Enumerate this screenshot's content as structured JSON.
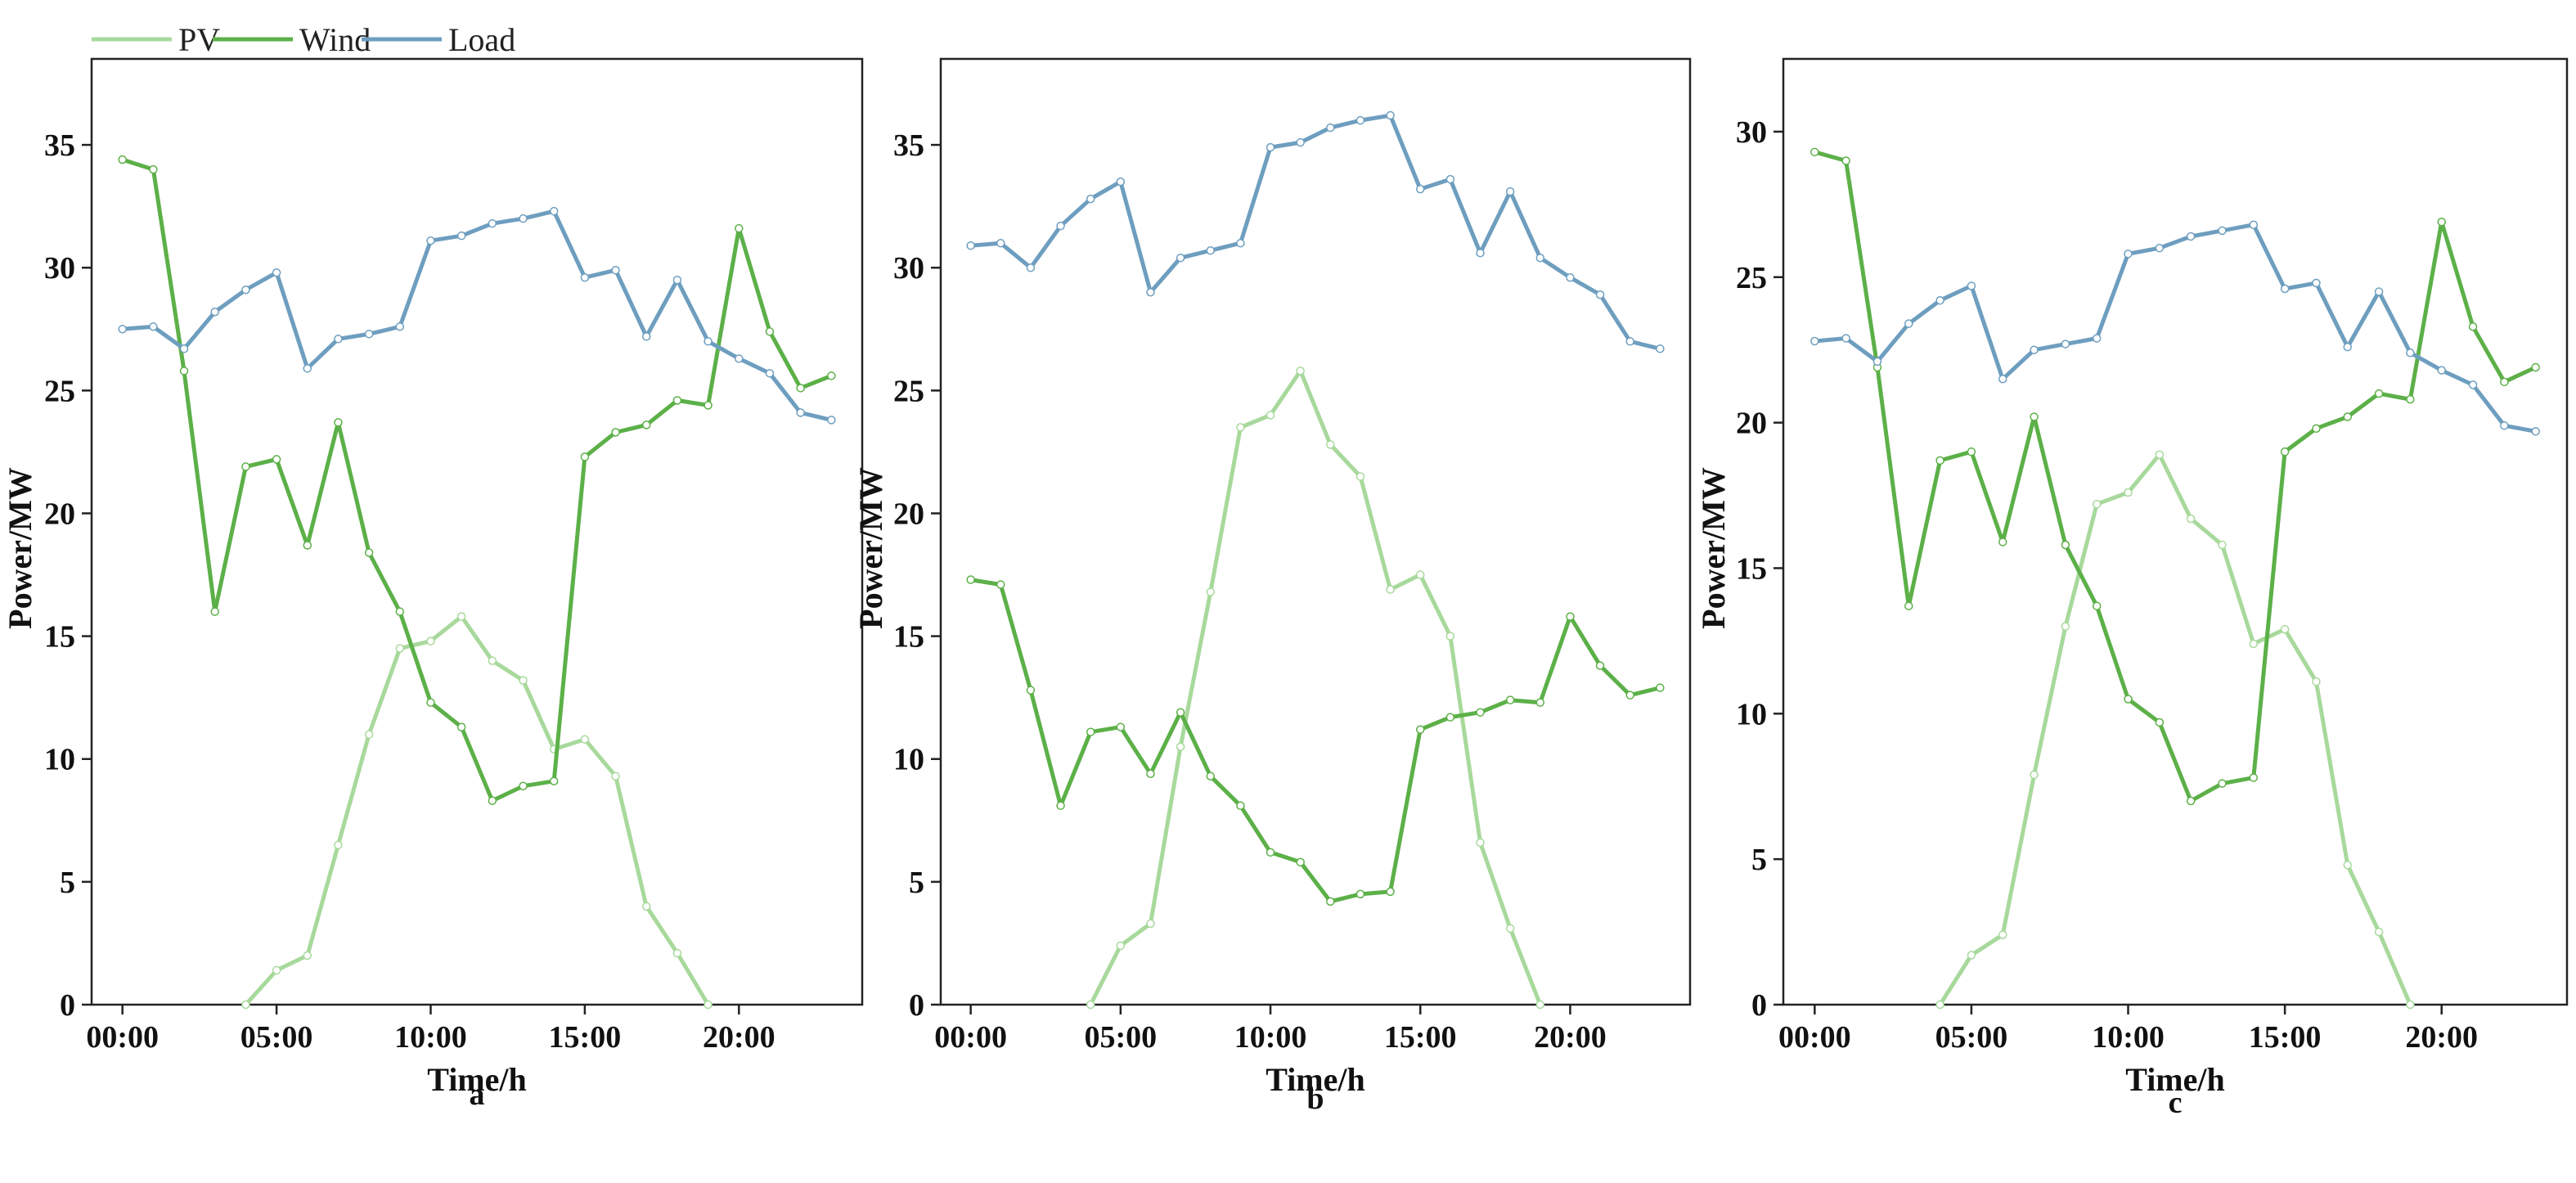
{
  "legend": {
    "items": [
      {
        "label": "PV",
        "color": "#a8d99c"
      },
      {
        "label": "Wind",
        "color": "#5cb048"
      },
      {
        "label": "Load",
        "color": "#6e9ebf"
      }
    ]
  },
  "chart_data": [
    {
      "type": "line",
      "panel_label": "a",
      "xlabel": "Time/h",
      "ylabel": "Power/MW",
      "x": [
        0,
        1,
        2,
        3,
        4,
        5,
        6,
        7,
        8,
        9,
        10,
        11,
        12,
        13,
        14,
        15,
        16,
        17,
        18,
        19,
        20,
        21,
        22,
        23
      ],
      "x_tick_labels": [
        "00:00",
        "05:00",
        "10:00",
        "15:00",
        "20:00"
      ],
      "x_tick_values": [
        0,
        5,
        10,
        15,
        20
      ],
      "xlim": [
        -1,
        24
      ],
      "ylim": [
        0,
        38.5
      ],
      "y_ticks": [
        0,
        5,
        10,
        15,
        20,
        25,
        30,
        35
      ],
      "series": [
        {
          "name": "PV",
          "color": "#a8d99c",
          "values": [
            null,
            null,
            null,
            null,
            0,
            1.4,
            2.0,
            6.5,
            11.0,
            14.5,
            14.8,
            15.8,
            14.0,
            13.2,
            10.4,
            10.8,
            9.3,
            4.0,
            2.1,
            0,
            null,
            null,
            null,
            null
          ]
        },
        {
          "name": "Wind",
          "color": "#5cb048",
          "values": [
            34.4,
            34.0,
            25.8,
            16.0,
            21.9,
            22.2,
            18.7,
            23.7,
            18.4,
            16.0,
            12.3,
            11.3,
            8.3,
            8.9,
            9.1,
            22.3,
            23.3,
            23.6,
            24.6,
            24.4,
            31.6,
            27.4,
            25.1,
            25.6
          ]
        },
        {
          "name": "Load",
          "color": "#6e9ebf",
          "values": [
            27.5,
            27.6,
            26.7,
            28.2,
            29.1,
            29.8,
            25.9,
            27.1,
            27.3,
            27.6,
            31.1,
            31.3,
            31.8,
            32.0,
            32.3,
            29.6,
            29.9,
            27.2,
            29.5,
            27.0,
            26.3,
            25.7,
            24.1,
            23.8
          ]
        }
      ]
    },
    {
      "type": "line",
      "panel_label": "b",
      "xlabel": "Time/h",
      "ylabel": "Power/MW",
      "x": [
        0,
        1,
        2,
        3,
        4,
        5,
        6,
        7,
        8,
        9,
        10,
        11,
        12,
        13,
        14,
        15,
        16,
        17,
        18,
        19,
        20,
        21,
        22,
        23
      ],
      "x_tick_labels": [
        "00:00",
        "05:00",
        "10:00",
        "15:00",
        "20:00"
      ],
      "x_tick_values": [
        0,
        5,
        10,
        15,
        20
      ],
      "xlim": [
        -1,
        24
      ],
      "ylim": [
        0,
        38.5
      ],
      "y_ticks": [
        0,
        5,
        10,
        15,
        20,
        25,
        30,
        35
      ],
      "series": [
        {
          "name": "PV",
          "color": "#a8d99c",
          "values": [
            null,
            null,
            null,
            null,
            0,
            2.4,
            3.3,
            10.5,
            16.8,
            23.5,
            24.0,
            25.8,
            22.8,
            21.5,
            16.9,
            17.5,
            15.0,
            6.6,
            3.1,
            0,
            null,
            null,
            null,
            null
          ]
        },
        {
          "name": "Wind",
          "color": "#5cb048",
          "values": [
            17.3,
            17.1,
            12.8,
            8.1,
            11.1,
            11.3,
            9.4,
            11.9,
            9.3,
            8.1,
            6.2,
            5.8,
            4.2,
            4.5,
            4.6,
            11.2,
            11.7,
            11.9,
            12.4,
            12.3,
            15.8,
            13.8,
            12.6,
            12.9
          ]
        },
        {
          "name": "Load",
          "color": "#6e9ebf",
          "values": [
            30.9,
            31.0,
            30.0,
            31.7,
            32.8,
            33.5,
            29.0,
            30.4,
            30.7,
            31.0,
            34.9,
            35.1,
            35.7,
            36.0,
            36.2,
            33.2,
            33.6,
            30.6,
            33.1,
            30.4,
            29.6,
            28.9,
            27.0,
            26.7
          ]
        }
      ]
    },
    {
      "type": "line",
      "panel_label": "c",
      "xlabel": "Time/h",
      "ylabel": "Power/MW",
      "x": [
        0,
        1,
        2,
        3,
        4,
        5,
        6,
        7,
        8,
        9,
        10,
        11,
        12,
        13,
        14,
        15,
        16,
        17,
        18,
        19,
        20,
        21,
        22,
        23
      ],
      "x_tick_labels": [
        "00:00",
        "05:00",
        "10:00",
        "15:00",
        "20:00"
      ],
      "x_tick_values": [
        0,
        5,
        10,
        15,
        20
      ],
      "xlim": [
        -1,
        24
      ],
      "ylim": [
        0,
        32.5
      ],
      "y_ticks": [
        0,
        5,
        10,
        15,
        20,
        25,
        30
      ],
      "series": [
        {
          "name": "PV",
          "color": "#a8d99c",
          "values": [
            null,
            null,
            null,
            null,
            0,
            1.7,
            2.4,
            7.9,
            13.0,
            17.2,
            17.6,
            18.9,
            16.7,
            15.8,
            12.4,
            12.9,
            11.1,
            4.8,
            2.5,
            0,
            null,
            null,
            null,
            null
          ]
        },
        {
          "name": "Wind",
          "color": "#5cb048",
          "values": [
            29.3,
            29.0,
            21.9,
            13.7,
            18.7,
            19.0,
            15.9,
            20.2,
            15.8,
            13.7,
            10.5,
            9.7,
            7.0,
            7.6,
            7.8,
            19.0,
            19.8,
            20.2,
            21.0,
            20.8,
            26.9,
            23.3,
            21.4,
            21.9
          ]
        },
        {
          "name": "Load",
          "color": "#6e9ebf",
          "values": [
            22.8,
            22.9,
            22.1,
            23.4,
            24.2,
            24.7,
            21.5,
            22.5,
            22.7,
            22.9,
            25.8,
            26.0,
            26.4,
            26.6,
            26.8,
            24.6,
            24.8,
            22.6,
            24.5,
            22.4,
            21.8,
            21.3,
            19.9,
            19.7
          ]
        }
      ]
    }
  ]
}
